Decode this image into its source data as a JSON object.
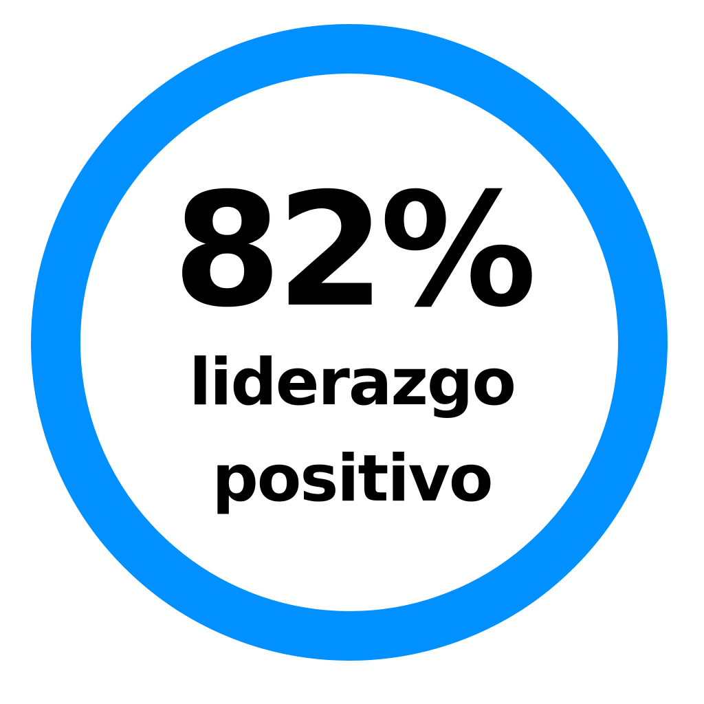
{
  "stat": {
    "value": "82%",
    "line1": "liderazgo",
    "line2": "positivo"
  },
  "colors": {
    "ring": "#0090FF",
    "text": "#000000"
  }
}
